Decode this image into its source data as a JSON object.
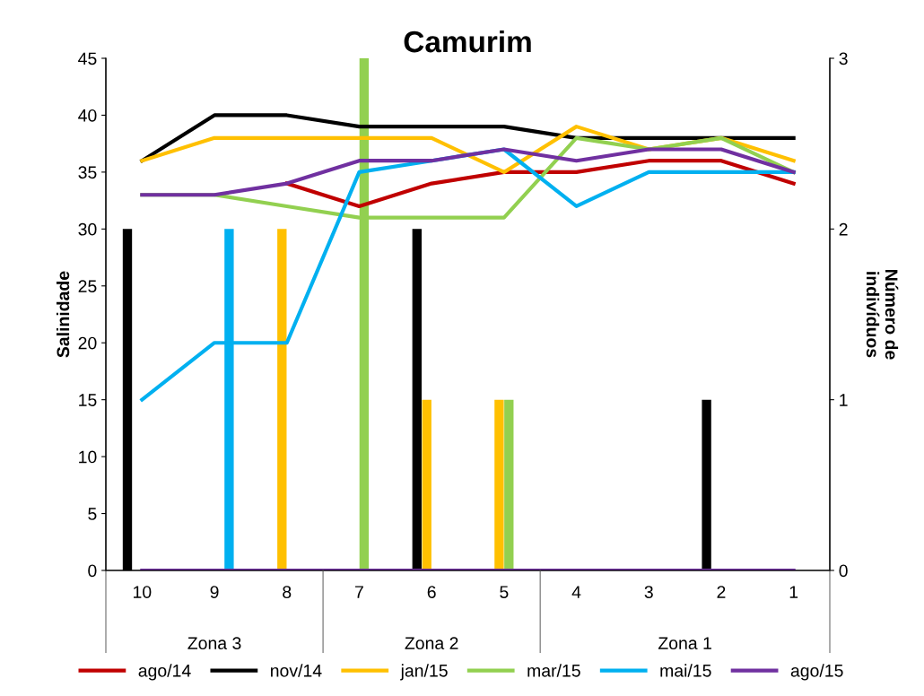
{
  "chart_data": {
    "type": "line",
    "title": "Camurim",
    "ylabel": "Salinidade",
    "y2label": "Número de\nindivíduos",
    "categories": [
      "10",
      "9",
      "8",
      "7",
      "6",
      "5",
      "4",
      "3",
      "2",
      "1"
    ],
    "ylim": [
      0,
      45
    ],
    "yticks": [
      0,
      5,
      10,
      15,
      20,
      25,
      30,
      35,
      40,
      45
    ],
    "y2lim": [
      0,
      3
    ],
    "y2ticks": [
      0,
      1,
      2,
      3
    ],
    "grid": false,
    "legend": "bottom",
    "marker": "none",
    "line_style": "solid",
    "annotations": [
      "Zona 3",
      "Zona 2",
      "Zona 1"
    ],
    "series": [
      {
        "type": "bar",
        "axis": "y2",
        "color": "#c00000",
        "values": [
          0,
          0,
          0,
          0,
          0,
          0,
          0,
          0,
          0,
          0
        ]
      },
      {
        "type": "bar",
        "axis": "y2",
        "color": "#000000",
        "values": [
          2,
          0,
          0,
          0,
          2,
          0,
          0,
          0,
          1,
          0
        ]
      },
      {
        "type": "bar",
        "axis": "y2",
        "color": "#ffc000",
        "values": [
          0,
          0,
          2,
          0,
          1,
          1,
          0,
          0,
          0,
          0
        ]
      },
      {
        "type": "bar",
        "axis": "y2",
        "color": "#92d050",
        "values": [
          0,
          0,
          0,
          3,
          0,
          1,
          0,
          0,
          0,
          0
        ]
      },
      {
        "type": "bar",
        "axis": "y2",
        "color": "#00b0f0",
        "values": [
          0,
          2,
          0,
          0,
          0,
          0,
          0,
          0,
          0,
          0
        ]
      },
      {
        "type": "line",
        "axis": "y2",
        "color": "#7030a0",
        "values": [
          0,
          0,
          0,
          0,
          0,
          0,
          0,
          0,
          0,
          0
        ]
      },
      {
        "name": "ago/14",
        "color": "#c00000",
        "values": [
          null,
          null,
          34,
          32,
          34,
          35,
          35,
          36,
          36,
          34
        ]
      },
      {
        "name": "nov/14",
        "color": "#000000",
        "values": [
          36,
          40,
          40,
          39,
          39,
          39,
          38,
          38,
          38,
          38
        ]
      },
      {
        "name": "jan/15",
        "color": "#ffc000",
        "values": [
          36,
          38,
          38,
          38,
          38,
          35,
          39,
          37,
          38,
          36
        ]
      },
      {
        "name": "mar/15",
        "color": "#92d050",
        "values": [
          33,
          33,
          32,
          31,
          31,
          31,
          38,
          37,
          38,
          35
        ]
      },
      {
        "name": "mai/15",
        "color": "#00b0f0",
        "values": [
          15,
          20,
          20,
          35,
          36,
          37,
          32,
          35,
          35,
          35
        ]
      },
      {
        "name": "ago/15",
        "color": "#7030a0",
        "values": [
          33,
          33,
          34,
          36,
          36,
          37,
          36,
          37,
          37,
          35
        ]
      }
    ]
  }
}
